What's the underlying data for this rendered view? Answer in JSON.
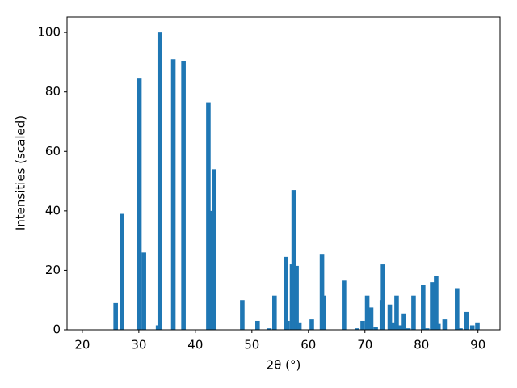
{
  "chart_data": {
    "type": "bar",
    "x_label": "2θ (°)",
    "y_label": "Intensities (scaled)",
    "color": "#1f77b4",
    "x": [
      25.9,
      27.0,
      30.1,
      30.9,
      33.4,
      33.7,
      36.1,
      37.9,
      42.3,
      42.7,
      43.3,
      48.3,
      51.0,
      53.1,
      54.0,
      56.0,
      56.3,
      57.1,
      57.4,
      57.9,
      58.4,
      60.6,
      62.4,
      62.7,
      66.3,
      68.6,
      69.6,
      70.4,
      71.1,
      71.9,
      73.0,
      73.2,
      74.4,
      75.1,
      75.6,
      76.3,
      76.9,
      77.7,
      78.6,
      80.3,
      81.0,
      81.9,
      82.6,
      83.0,
      84.1,
      86.3,
      86.9,
      88.0,
      89.0,
      89.9
    ],
    "values": [
      9,
      39,
      84.5,
      26,
      1.5,
      100,
      91,
      90.5,
      76.5,
      40,
      54,
      10,
      3,
      0.5,
      11.5,
      24.5,
      3,
      22,
      47,
      21.5,
      2.5,
      3.5,
      25.5,
      11.5,
      16.5,
      0.5,
      3,
      11.5,
      7.5,
      1,
      10,
      22,
      8.5,
      2.5,
      11.5,
      1.5,
      5.5,
      0.5,
      11.5,
      15,
      0.5,
      16,
      18,
      2,
      3.5,
      14,
      0.5,
      6,
      1.5,
      2.5
    ],
    "xlim": [
      17.3,
      93.9
    ],
    "ylim": [
      0,
      105.2
    ],
    "xticks": [
      20,
      30,
      40,
      50,
      60,
      70,
      80,
      90
    ],
    "yticks": [
      0,
      20,
      40,
      60,
      80,
      100
    ]
  }
}
